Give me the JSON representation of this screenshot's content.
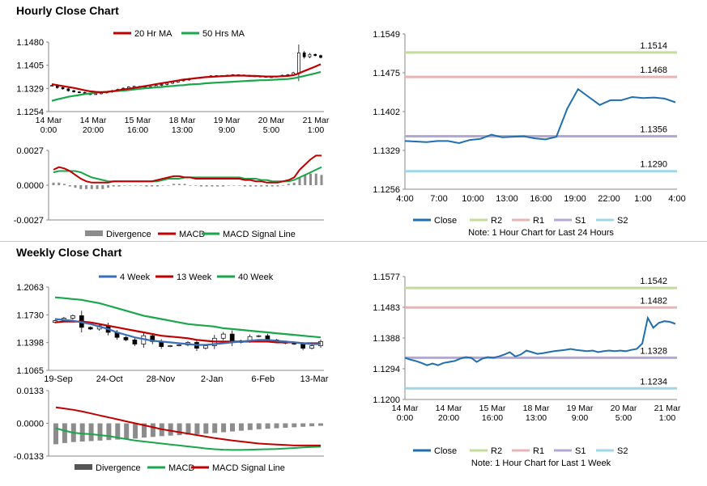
{
  "sections": {
    "hourly_title": "Hourly Close Chart",
    "weekly_title": "Weekly Close Chart"
  },
  "colors": {
    "red": "#c00000",
    "green": "#1aa64b",
    "blue": "#3a6fb5",
    "gray": "#8c8c8c",
    "close": "#1f6fb0",
    "r2": "#c3dc9a",
    "r1": "#e8b4b4",
    "s1": "#b4a7d6",
    "s2": "#9fd7e8"
  },
  "chart_data": [
    {
      "id": "hourly_price",
      "type": "candlestick",
      "legend": [
        "20 Hr MA",
        "50 Hrs MA"
      ],
      "yticks": [
        "1.1480",
        "1.1405",
        "1.1329",
        "1.1254"
      ],
      "ylim": [
        1.1254,
        1.148
      ],
      "xlabels": [
        [
          "14 Mar",
          "0:00"
        ],
        [
          "14 Mar",
          "20:00"
        ],
        [
          "15 Mar",
          "16:00"
        ],
        [
          "18 Mar",
          "13:00"
        ],
        [
          "19 Mar",
          "9:00"
        ],
        [
          "20 Mar",
          "5:00"
        ],
        [
          "21 Mar",
          "1:00"
        ]
      ],
      "close": [
        1.1339,
        1.1332,
        1.1328,
        1.1322,
        1.1318,
        1.1316,
        1.1312,
        1.131,
        1.1312,
        1.1315,
        1.1318,
        1.1322,
        1.1326,
        1.133,
        1.1334,
        1.1336,
        1.1334,
        1.1332,
        1.1335,
        1.1339,
        1.1342,
        1.1346,
        1.135,
        1.1354,
        1.1357,
        1.1361,
        1.1363,
        1.1365,
        1.1367,
        1.137,
        1.1371,
        1.1369,
        1.1372,
        1.1374,
        1.1373,
        1.1372,
        1.137,
        1.1369,
        1.1368,
        1.1366,
        1.1367,
        1.1369,
        1.1372,
        1.1374,
        1.138,
        1.1445,
        1.1432,
        1.144,
        1.1436,
        1.143
      ],
      "ma20": [
        1.1343,
        1.134,
        1.1337,
        1.1334,
        1.1331,
        1.1327,
        1.1323,
        1.132,
        1.1318,
        1.1317,
        1.1318,
        1.132,
        1.1323,
        1.1326,
        1.1328,
        1.1331,
        1.1334,
        1.1337,
        1.134,
        1.1343,
        1.1346,
        1.1349,
        1.1352,
        1.1355,
        1.1358,
        1.136,
        1.1362,
        1.1364,
        1.1366,
        1.1367,
        1.1368,
        1.1369,
        1.137,
        1.1371,
        1.1371,
        1.1371,
        1.137,
        1.137,
        1.1369,
        1.1368,
        1.1368,
        1.1368,
        1.1369,
        1.137,
        1.1372,
        1.1378,
        1.1386,
        1.1393,
        1.14,
        1.1408
      ],
      "ma50": [
        1.1289,
        1.1294,
        1.1298,
        1.1302,
        1.1305,
        1.1308,
        1.1311,
        1.1313,
        1.1315,
        1.1317,
        1.1318,
        1.132,
        1.1321,
        1.1322,
        1.1324,
        1.1326,
        1.1328,
        1.133,
        1.1331,
        1.1333,
        1.1334,
        1.1336,
        1.1337,
        1.1339,
        1.134,
        1.1342,
        1.1343,
        1.1344,
        1.1346,
        1.1347,
        1.1348,
        1.1349,
        1.135,
        1.1351,
        1.1352,
        1.1353,
        1.1354,
        1.1355,
        1.1356,
        1.1356,
        1.1357,
        1.1358,
        1.1359,
        1.136,
        1.1362,
        1.1366,
        1.137,
        1.1374,
        1.1378,
        1.1383
      ]
    },
    {
      "id": "hourly_macd",
      "type": "bar_line",
      "yticks": [
        "0.0027",
        "0.0000",
        "-0.0027"
      ],
      "ylim": [
        -0.0027,
        0.0027
      ],
      "legend": [
        "Divergence",
        "MACD",
        "MACD Signal Line"
      ],
      "divergence": [
        0.0002,
        0.0002,
        0.0001,
        -0.0001,
        -0.0002,
        -0.0003,
        -0.0003,
        -0.0003,
        -0.0003,
        -0.0003,
        -0.0002,
        -0.0001,
        -0.0001,
        0.0,
        0.0,
        0.0,
        0.0,
        -0.0001,
        -0.0001,
        -0.0001,
        0.0,
        0.0,
        0.0001,
        0.0001,
        0.0001,
        0.0,
        0.0,
        -0.0001,
        -0.0001,
        -0.0001,
        -0.0001,
        -0.0001,
        0.0,
        0.0,
        0.0,
        -0.0001,
        -0.0001,
        -0.0001,
        -0.0001,
        -0.0001,
        -0.0001,
        -0.0001,
        0.0,
        0.0001,
        0.0002,
        0.0006,
        0.0008,
        0.0009,
        0.0009,
        0.0008
      ],
      "macd": [
        0.0012,
        0.0014,
        0.0013,
        0.0011,
        0.0008,
        0.0005,
        0.0003,
        0.0002,
        0.0002,
        0.0002,
        0.0002,
        0.0003,
        0.0003,
        0.0003,
        0.0003,
        0.0003,
        0.0003,
        0.0003,
        0.0003,
        0.0004,
        0.0005,
        0.0006,
        0.0007,
        0.0007,
        0.0006,
        0.0006,
        0.0005,
        0.0005,
        0.0005,
        0.0005,
        0.0005,
        0.0005,
        0.0005,
        0.0005,
        0.0005,
        0.0004,
        0.0004,
        0.0003,
        0.0003,
        0.0002,
        0.0002,
        0.0002,
        0.0003,
        0.0004,
        0.0006,
        0.0012,
        0.0016,
        0.002,
        0.0023,
        0.0023
      ],
      "signal": [
        0.001,
        0.0011,
        0.0011,
        0.0011,
        0.0011,
        0.001,
        0.0008,
        0.0006,
        0.0005,
        0.0004,
        0.0003,
        0.0003,
        0.0003,
        0.0003,
        0.0003,
        0.0003,
        0.0003,
        0.0003,
        0.0003,
        0.0003,
        0.0004,
        0.0005,
        0.0005,
        0.0005,
        0.0006,
        0.0006,
        0.0006,
        0.0006,
        0.0006,
        0.0006,
        0.0006,
        0.0006,
        0.0006,
        0.0006,
        0.0006,
        0.0005,
        0.0005,
        0.0005,
        0.0004,
        0.0004,
        0.0003,
        0.0003,
        0.0003,
        0.0003,
        0.0004,
        0.0006,
        0.0008,
        0.001,
        0.0012,
        0.0014
      ]
    },
    {
      "id": "hourly_pivot",
      "type": "line",
      "yticks": [
        "1.1549",
        "1.1475",
        "1.1402",
        "1.1329",
        "1.1256"
      ],
      "ylim": [
        1.1256,
        1.1549
      ],
      "xticks": [
        "4:00",
        "7:00",
        "10:00",
        "13:00",
        "16:00",
        "19:00",
        "22:00",
        "1:00",
        "4:00"
      ],
      "levels": {
        "R2": 1.1514,
        "R1": 1.1468,
        "S1": 1.1356,
        "S2": 1.129
      },
      "level_labels": {
        "R2": "1.1514",
        "R1": "1.1468",
        "S1": "1.1356",
        "S2": "1.1290"
      },
      "close": [
        1.1347,
        1.1346,
        1.1345,
        1.1347,
        1.1347,
        1.1343,
        1.1349,
        1.1351,
        1.1359,
        1.1354,
        1.1355,
        1.1356,
        1.1352,
        1.135,
        1.1355,
        1.1408,
        1.1445,
        1.143,
        1.1415,
        1.1424,
        1.1424,
        1.143,
        1.1428,
        1.1429,
        1.1427,
        1.142
      ],
      "legend": [
        "Close",
        "R2",
        "R1",
        "S1",
        "S2"
      ],
      "note": "Note: 1 Hour Chart for Last 24 Hours"
    },
    {
      "id": "weekly_price",
      "type": "candlestick",
      "legend": [
        "4 Week",
        "13 Week",
        "40 Week"
      ],
      "yticks": [
        "1.2063",
        "1.1730",
        "1.1398",
        "1.1065"
      ],
      "ylim": [
        1.1065,
        1.2063
      ],
      "xticks": [
        "19-Sep",
        "24-Oct",
        "28-Nov",
        "2-Jan",
        "6-Feb",
        "13-Mar"
      ],
      "close": [
        1.166,
        1.169,
        1.172,
        1.158,
        1.156,
        1.16,
        1.152,
        1.146,
        1.143,
        1.138,
        1.148,
        1.141,
        1.135,
        1.136,
        1.137,
        1.14,
        1.133,
        1.136,
        1.145,
        1.15,
        1.14,
        1.142,
        1.147,
        1.148,
        1.143,
        1.141,
        1.139,
        1.138,
        1.133,
        1.136,
        1.141
      ],
      "w4": [
        1.168,
        1.167,
        1.166,
        1.164,
        1.162,
        1.159,
        1.156,
        1.152,
        1.149,
        1.146,
        1.144,
        1.142,
        1.141,
        1.14,
        1.139,
        1.138,
        1.137,
        1.137,
        1.138,
        1.139,
        1.14,
        1.141,
        1.142,
        1.143,
        1.143,
        1.142,
        1.141,
        1.14,
        1.139,
        1.138,
        1.138
      ],
      "w13": [
        1.164,
        1.165,
        1.165,
        1.165,
        1.164,
        1.162,
        1.16,
        1.158,
        1.156,
        1.154,
        1.152,
        1.15,
        1.148,
        1.147,
        1.146,
        1.145,
        1.143,
        1.142,
        1.141,
        1.141,
        1.141,
        1.141,
        1.141,
        1.141,
        1.141,
        1.14,
        1.14,
        1.14,
        1.139,
        1.139,
        1.139
      ],
      "w40": [
        1.194,
        1.193,
        1.192,
        1.191,
        1.189,
        1.187,
        1.184,
        1.181,
        1.178,
        1.175,
        1.172,
        1.17,
        1.168,
        1.166,
        1.164,
        1.162,
        1.161,
        1.16,
        1.159,
        1.157,
        1.156,
        1.155,
        1.154,
        1.153,
        1.152,
        1.151,
        1.15,
        1.149,
        1.148,
        1.147,
        1.146
      ]
    },
    {
      "id": "weekly_macd",
      "type": "bar_line",
      "yticks": [
        "0.0133",
        "0.0000",
        "-0.0133"
      ],
      "ylim": [
        -0.0133,
        0.0133
      ],
      "legend": [
        "Divergence",
        "MACD",
        "MACD Signal Line"
      ],
      "divergence": [
        -0.0085,
        -0.008,
        -0.0076,
        -0.0074,
        -0.0072,
        -0.007,
        -0.0068,
        -0.0066,
        -0.0064,
        -0.0062,
        -0.0058,
        -0.0055,
        -0.0052,
        -0.005,
        -0.0048,
        -0.0046,
        -0.0044,
        -0.0042,
        -0.0039,
        -0.0036,
        -0.0033,
        -0.003,
        -0.0027,
        -0.0024,
        -0.0022,
        -0.002,
        -0.0018,
        -0.0016,
        -0.0014,
        -0.0012,
        -0.001
      ],
      "macd": [
        -0.002,
        -0.003,
        -0.0038,
        -0.0042,
        -0.0044,
        -0.0048,
        -0.0052,
        -0.0058,
        -0.0064,
        -0.007,
        -0.0074,
        -0.0078,
        -0.0082,
        -0.0086,
        -0.009,
        -0.0094,
        -0.0098,
        -0.0102,
        -0.0105,
        -0.0107,
        -0.0108,
        -0.0108,
        -0.0107,
        -0.0106,
        -0.0105,
        -0.0104,
        -0.0102,
        -0.01,
        -0.0098,
        -0.0096,
        -0.0095
      ],
      "signal": [
        0.0065,
        0.006,
        0.0055,
        0.0048,
        0.004,
        0.0032,
        0.0024,
        0.0016,
        0.0008,
        0.0,
        -0.0008,
        -0.0016,
        -0.0024,
        -0.003,
        -0.0036,
        -0.0042,
        -0.0048,
        -0.0054,
        -0.006,
        -0.0065,
        -0.007,
        -0.0074,
        -0.0078,
        -0.0082,
        -0.0084,
        -0.0086,
        -0.0088,
        -0.009,
        -0.009,
        -0.009,
        -0.009
      ]
    },
    {
      "id": "weekly_pivot",
      "type": "line",
      "yticks": [
        "1.1577",
        "1.1483",
        "1.1388",
        "1.1294",
        "1.1200"
      ],
      "ylim": [
        1.12,
        1.1577
      ],
      "xlabels": [
        [
          "14 Mar",
          "0:00"
        ],
        [
          "14 Mar",
          "20:00"
        ],
        [
          "15 Mar",
          "16:00"
        ],
        [
          "18 Mar",
          "13:00"
        ],
        [
          "19 Mar",
          "9:00"
        ],
        [
          "20 Mar",
          "5:00"
        ],
        [
          "21 Mar",
          "1:00"
        ]
      ],
      "levels": {
        "R2": 1.1542,
        "R1": 1.1482,
        "S1": 1.1328,
        "S2": 1.1234
      },
      "level_labels": {
        "R2": "1.1542",
        "R1": "1.1482",
        "S1": "1.1328",
        "S2": "1.1234"
      },
      "close": [
        1.1328,
        1.1322,
        1.1318,
        1.1312,
        1.1305,
        1.131,
        1.1305,
        1.1312,
        1.1315,
        1.1318,
        1.1325,
        1.133,
        1.1328,
        1.1315,
        1.1325,
        1.133,
        1.1328,
        1.1332,
        1.1338,
        1.1345,
        1.1332,
        1.1338,
        1.135,
        1.1345,
        1.134,
        1.1342,
        1.1345,
        1.1348,
        1.135,
        1.1352,
        1.1355,
        1.1352,
        1.135,
        1.1348,
        1.135,
        1.1345,
        1.1348,
        1.135,
        1.1348,
        1.135,
        1.1348,
        1.1352,
        1.1355,
        1.1372,
        1.145,
        1.142,
        1.1435,
        1.144,
        1.1438,
        1.1432
      ],
      "legend": [
        "Close",
        "R2",
        "R1",
        "S1",
        "S2"
      ],
      "note": "Note: 1 Hour Chart for Last 1 Week"
    }
  ]
}
